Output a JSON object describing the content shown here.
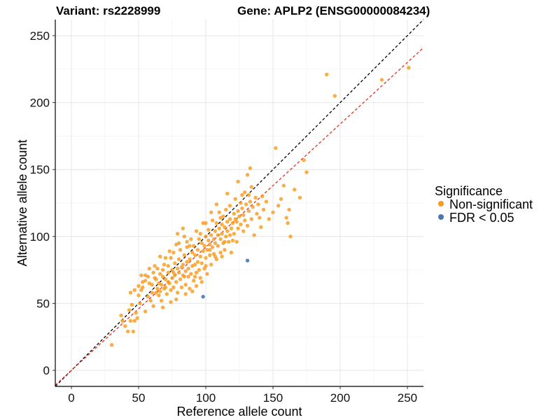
{
  "chart_data": {
    "type": "scatter",
    "title_left": "Variant: rs2228999",
    "title_right": "Gene: APLP2 (ENSG00000084234)",
    "xlabel": "Reference allele count",
    "ylabel": "Alternative allele count",
    "xlim": [
      -12,
      262
    ],
    "ylim": [
      -12,
      262
    ],
    "x_ticks": [
      0,
      50,
      100,
      150,
      200,
      250
    ],
    "y_ticks": [
      0,
      50,
      100,
      150,
      200,
      250
    ],
    "grid": true,
    "legend": {
      "title": "Significance",
      "placement": "right",
      "entries": [
        {
          "label": "Non-significant",
          "color": "#F79B1F"
        },
        {
          "label": "FDR < 0.05",
          "color": "#4A77B4"
        }
      ]
    },
    "reference_lines": [
      {
        "style": "dashed",
        "color": "#000000",
        "slope": 1.0,
        "intercept": 0
      },
      {
        "style": "dashed",
        "color": "#E8301E",
        "slope": 0.92,
        "intercept": 0
      }
    ],
    "series": [
      {
        "name": "Non-significant",
        "color": "#F79B1F",
        "points": [
          [
            30,
            19
          ],
          [
            37,
            41
          ],
          [
            38,
            37
          ],
          [
            40,
            33
          ],
          [
            42,
            29
          ],
          [
            43,
            45
          ],
          [
            44,
            37
          ],
          [
            46,
            29
          ],
          [
            47,
            37
          ],
          [
            48,
            43
          ],
          [
            44,
            58
          ],
          [
            47,
            60
          ],
          [
            50,
            56
          ],
          [
            50,
            63
          ],
          [
            52,
            60
          ],
          [
            53,
            62
          ],
          [
            55,
            67
          ],
          [
            52,
            71
          ],
          [
            55,
            71
          ],
          [
            57,
            55
          ],
          [
            58,
            65
          ],
          [
            59,
            52
          ],
          [
            60,
            64
          ],
          [
            61,
            73
          ],
          [
            62,
            78
          ],
          [
            63,
            68
          ],
          [
            63,
            58
          ],
          [
            64,
            61
          ],
          [
            65,
            65
          ],
          [
            65,
            56
          ],
          [
            66,
            72
          ],
          [
            66,
            85
          ],
          [
            67,
            64
          ],
          [
            67,
            52
          ],
          [
            68,
            75
          ],
          [
            68,
            70
          ],
          [
            69,
            61
          ],
          [
            70,
            84
          ],
          [
            70,
            68
          ],
          [
            71,
            57
          ],
          [
            72,
            73
          ],
          [
            72,
            78
          ],
          [
            73,
            65
          ],
          [
            74,
            60
          ],
          [
            74,
            84
          ],
          [
            75,
            69
          ],
          [
            75,
            75
          ],
          [
            76,
            88
          ],
          [
            76,
            62
          ],
          [
            77,
            71
          ],
          [
            77,
            80
          ],
          [
            78,
            66
          ],
          [
            78,
            94
          ],
          [
            79,
            58
          ],
          [
            79,
            76
          ],
          [
            80,
            73
          ],
          [
            80,
            83
          ],
          [
            81,
            68
          ],
          [
            81,
            90
          ],
          [
            82,
            62
          ],
          [
            82,
            77
          ],
          [
            83,
            79
          ],
          [
            83,
            71
          ],
          [
            84,
            86
          ],
          [
            84,
            100
          ],
          [
            85,
            74
          ],
          [
            85,
            64
          ],
          [
            86,
            81
          ],
          [
            86,
            92
          ],
          [
            87,
            70
          ],
          [
            87,
            76
          ],
          [
            88,
            83
          ],
          [
            88,
            61
          ],
          [
            89,
            98
          ],
          [
            89,
            72
          ],
          [
            90,
            88
          ],
          [
            90,
            78
          ],
          [
            91,
            67
          ],
          [
            91,
            93
          ],
          [
            92,
            79
          ],
          [
            92,
            86
          ],
          [
            93,
            73
          ],
          [
            93,
            104
          ],
          [
            94,
            81
          ],
          [
            94,
            90
          ],
          [
            95,
            75
          ],
          [
            95,
            98
          ],
          [
            96,
            85
          ],
          [
            96,
            69
          ],
          [
            97,
            95
          ],
          [
            97,
            80
          ],
          [
            98,
            89
          ],
          [
            98,
            110
          ],
          [
            99,
            76
          ],
          [
            99,
            93
          ],
          [
            100,
            84
          ],
          [
            100,
            100
          ],
          [
            101,
            90
          ],
          [
            101,
            72
          ],
          [
            102,
            97
          ],
          [
            102,
            105
          ],
          [
            103,
            86
          ],
          [
            103,
            94
          ],
          [
            104,
            101
          ],
          [
            104,
            79
          ],
          [
            105,
            92
          ],
          [
            105,
            112
          ],
          [
            106,
            98
          ],
          [
            106,
            87
          ],
          [
            107,
            104
          ],
          [
            107,
            95
          ],
          [
            108,
            110
          ],
          [
            108,
            83
          ],
          [
            109,
            101
          ],
          [
            109,
            93
          ],
          [
            110,
            106
          ],
          [
            110,
            118
          ],
          [
            111,
            98
          ],
          [
            111,
            88
          ],
          [
            112,
            109
          ],
          [
            112,
            102
          ],
          [
            113,
            95
          ],
          [
            113,
            115
          ],
          [
            114,
            107
          ],
          [
            114,
            90
          ],
          [
            115,
            100
          ],
          [
            115,
            120
          ],
          [
            116,
            111
          ],
          [
            116,
            104
          ],
          [
            117,
            96
          ],
          [
            118,
            113
          ],
          [
            118,
            123
          ],
          [
            119,
            106
          ],
          [
            119,
            88
          ],
          [
            120,
            110
          ],
          [
            121,
            117
          ],
          [
            121,
            102
          ],
          [
            122,
            128
          ],
          [
            123,
            111
          ],
          [
            123,
            96
          ],
          [
            124,
            119
          ],
          [
            124,
            106
          ],
          [
            125,
            115
          ],
          [
            126,
            109
          ],
          [
            126,
            125
          ],
          [
            127,
            121
          ],
          [
            128,
            104
          ],
          [
            128,
            116
          ],
          [
            129,
            112
          ],
          [
            130,
            124
          ],
          [
            131,
            146
          ],
          [
            131,
            108
          ],
          [
            132,
            119
          ],
          [
            133,
            151
          ],
          [
            133,
            126
          ],
          [
            134,
            113
          ],
          [
            135,
            122
          ],
          [
            136,
            101
          ],
          [
            137,
            129
          ],
          [
            138,
            117
          ],
          [
            139,
            124
          ],
          [
            140,
            114
          ],
          [
            141,
            107
          ],
          [
            142,
            130
          ],
          [
            143,
            120
          ],
          [
            145,
            126
          ],
          [
            147,
            113
          ],
          [
            150,
            118
          ],
          [
            152,
            166
          ],
          [
            154,
            123
          ],
          [
            156,
            128
          ],
          [
            158,
            138
          ],
          [
            160,
            114
          ],
          [
            161,
            110
          ],
          [
            162,
            120
          ],
          [
            163,
            100
          ],
          [
            166,
            135
          ],
          [
            170,
            129
          ],
          [
            173,
            157
          ],
          [
            175,
            148
          ],
          [
            190,
            221
          ],
          [
            196,
            205
          ],
          [
            231,
            217
          ],
          [
            251,
            226
          ],
          [
            58,
            76
          ],
          [
            62,
            69
          ],
          [
            66,
            59
          ],
          [
            70,
            62
          ],
          [
            73,
            89
          ],
          [
            79,
            102
          ],
          [
            83,
            106
          ],
          [
            86,
            96
          ],
          [
            90,
            59
          ],
          [
            93,
            63
          ],
          [
            97,
            66
          ],
          [
            100,
            110
          ],
          [
            104,
            118
          ],
          [
            108,
            124
          ],
          [
            112,
            85
          ],
          [
            116,
            132
          ],
          [
            120,
            97
          ],
          [
            124,
            141
          ],
          [
            129,
            133
          ],
          [
            134,
            137
          ],
          [
            61,
            48
          ],
          [
            68,
            47
          ],
          [
            74,
            51
          ],
          [
            78,
            53
          ],
          [
            85,
            57
          ],
          [
            55,
            44
          ],
          [
            51,
            50
          ],
          [
            49,
            39
          ],
          [
            45,
            49
          ],
          [
            53,
            66
          ],
          [
            57,
            70
          ],
          [
            60,
            58
          ],
          [
            64,
            76
          ],
          [
            69,
            79
          ],
          [
            72,
            66
          ],
          [
            76,
            73
          ],
          [
            80,
            95
          ],
          [
            84,
            70
          ],
          [
            88,
            93
          ],
          [
            92,
            70
          ],
          [
            96,
            102
          ],
          [
            100,
            78
          ],
          [
            103,
            90
          ],
          [
            107,
            85
          ],
          [
            111,
            114
          ],
          [
            114,
            96
          ],
          [
            118,
            101
          ],
          [
            122,
            113
          ],
          [
            127,
            131
          ],
          [
            132,
            131
          ]
        ]
      },
      {
        "name": "FDR < 0.05",
        "color": "#4A77B4",
        "points": [
          [
            98,
            55
          ],
          [
            131,
            82
          ]
        ]
      }
    ]
  }
}
